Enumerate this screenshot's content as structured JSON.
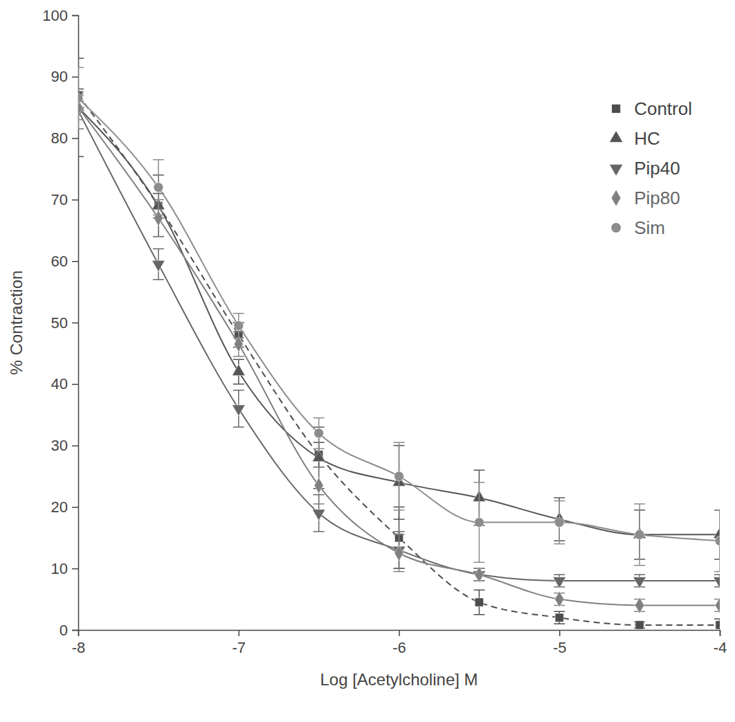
{
  "chart_data": {
    "type": "line",
    "x_label": "Log [Acetylcholine] M",
    "y_label": "% Contraction",
    "x": [
      -8,
      -7.5,
      -7,
      -6.5,
      -6,
      -5.5,
      -5,
      -4.5,
      -4
    ],
    "xlim": [
      -8,
      -4
    ],
    "xticks": [
      -8,
      -7,
      -6,
      -5,
      -4
    ],
    "ylim": [
      0,
      100
    ],
    "yticks": [
      0,
      10,
      20,
      30,
      40,
      50,
      60,
      70,
      80,
      90,
      100
    ],
    "grid": false,
    "legend": "top-right",
    "series": [
      {
        "name": "Control",
        "color": "#4d4d4d",
        "marker": "square",
        "line_style": "dashed",
        "values": [
          87,
          69,
          48,
          28.5,
          15,
          4.5,
          2,
          0.8,
          0.8
        ],
        "errors": [
          1,
          2,
          2,
          2,
          5,
          2,
          1,
          0.5,
          1
        ]
      },
      {
        "name": "HC",
        "color": "#555555",
        "marker": "triangle",
        "line_style": "solid",
        "values": [
          85,
          69,
          42,
          28,
          24,
          21.5,
          18,
          15.5,
          15.5
        ],
        "errors": [
          8,
          5,
          2,
          5,
          6,
          4.5,
          3.5,
          4,
          4
        ]
      },
      {
        "name": "Pip40",
        "color": "#666666",
        "marker": "triangle-down",
        "line_style": "solid",
        "values": [
          84.5,
          59.5,
          36,
          19,
          13,
          9,
          8,
          8,
          8
        ],
        "errors": [
          3,
          2.5,
          3,
          3,
          3,
          1,
          1,
          1,
          1
        ]
      },
      {
        "name": "Pip80",
        "color": "#808080",
        "marker": "diamond",
        "line_style": "solid",
        "values": [
          85,
          67,
          46.5,
          23.5,
          12.5,
          9,
          5,
          4,
          4
        ],
        "errors": [
          2,
          3,
          2,
          3,
          3,
          1,
          1,
          1,
          1
        ]
      },
      {
        "name": "Sim",
        "color": "#8c8c8c",
        "marker": "circle",
        "line_style": "solid",
        "values": [
          86.5,
          72,
          49.5,
          32,
          25,
          17.5,
          17.5,
          15.5,
          14.5
        ],
        "errors": [
          5,
          4.5,
          2,
          2.5,
          5.5,
          6.5,
          3.5,
          5,
          5
        ]
      }
    ]
  }
}
